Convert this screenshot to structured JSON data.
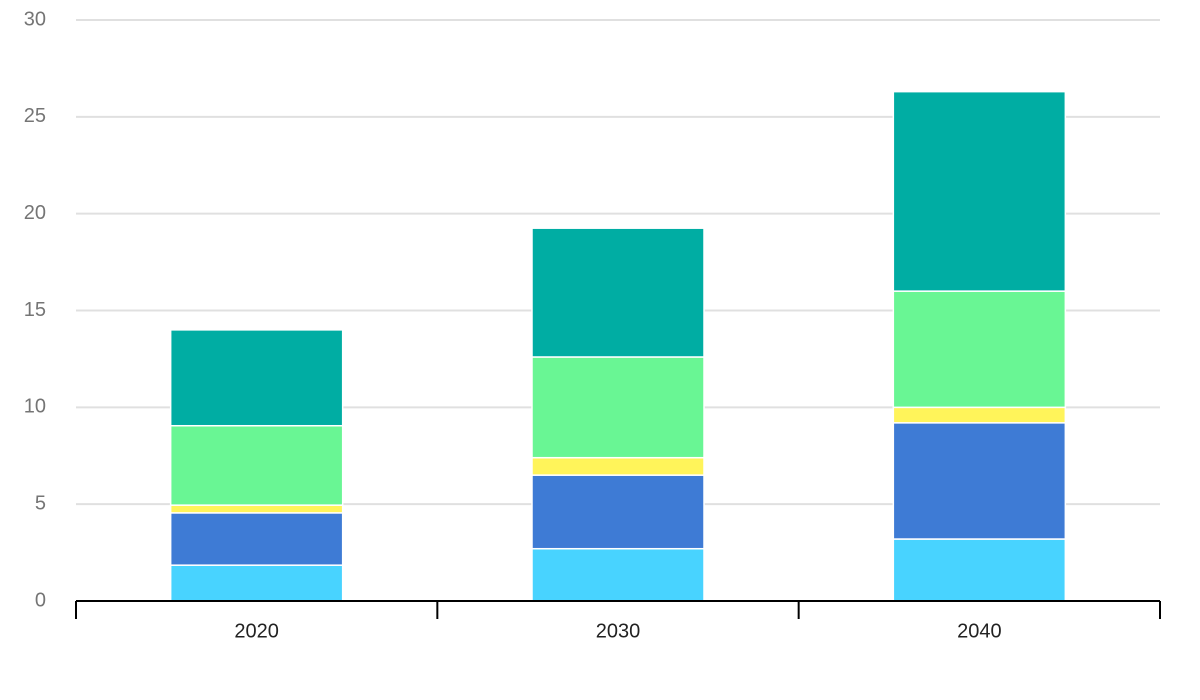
{
  "chart_data": {
    "type": "stacked-bar",
    "categories": [
      "2020",
      "2030",
      "2040"
    ],
    "series": [
      {
        "color": "#48d3ff",
        "values": [
          1.85,
          2.7,
          3.2
        ]
      },
      {
        "color": "#3e7bd5",
        "values": [
          2.7,
          3.8,
          6.0
        ]
      },
      {
        "color": "#fff45a",
        "values": [
          0.4,
          0.9,
          0.8
        ]
      },
      {
        "color": "#69f694",
        "values": [
          4.1,
          5.2,
          6.0
        ]
      },
      {
        "color": "#00ada3",
        "values": [
          4.95,
          6.65,
          10.3
        ]
      }
    ],
    "ylim": [
      0,
      30
    ],
    "yticks": [
      0,
      5,
      10,
      15,
      20,
      25,
      30
    ],
    "grid": true
  }
}
